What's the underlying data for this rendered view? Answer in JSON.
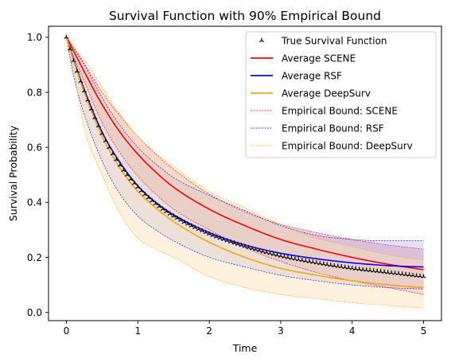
{
  "chart_data": {
    "type": "line",
    "title": "Survival Function with 90% Empirical Bound",
    "xlabel": "Time",
    "ylabel": "Survival Probability",
    "xlim": [
      -0.25,
      5.25
    ],
    "ylim": [
      -0.03,
      1.04
    ],
    "x_ticks": [
      0,
      1,
      2,
      3,
      4,
      5
    ],
    "x_tick_labels": [
      "0",
      "1",
      "2",
      "3",
      "4",
      "5"
    ],
    "y_ticks": [
      0.0,
      0.2,
      0.4,
      0.6,
      0.8,
      1.0
    ],
    "y_tick_labels": [
      "0.0",
      "0.2",
      "0.4",
      "0.6",
      "0.8",
      "1.0"
    ],
    "grid": false,
    "legend_position": "top-right",
    "x": [
      0,
      0.1,
      0.25,
      0.5,
      0.75,
      1,
      1.25,
      1.5,
      2,
      2.5,
      3,
      3.5,
      4,
      4.5,
      5
    ],
    "series": [
      {
        "name": "True Survival Function",
        "style": "markers",
        "color": "#000000",
        "values": [
          1.0,
          0.915,
          0.805,
          0.65,
          0.535,
          0.455,
          0.395,
          0.35,
          0.285,
          0.24,
          0.205,
          0.18,
          0.16,
          0.145,
          0.13
        ]
      },
      {
        "name": "Average SCENE",
        "style": "line",
        "color": "#ff0000",
        "values": [
          1.0,
          0.95,
          0.875,
          0.755,
          0.655,
          0.575,
          0.51,
          0.455,
          0.375,
          0.315,
          0.265,
          0.23,
          0.2,
          0.175,
          0.155
        ]
      },
      {
        "name": "Average RSF",
        "style": "line",
        "color": "#0000ff",
        "values": [
          1.0,
          0.92,
          0.81,
          0.655,
          0.545,
          0.46,
          0.4,
          0.355,
          0.29,
          0.245,
          0.215,
          0.195,
          0.18,
          0.17,
          0.165
        ]
      },
      {
        "name": "Average DeepSurv",
        "style": "line",
        "color": "#ffa500",
        "values": [
          1.0,
          0.915,
          0.8,
          0.64,
          0.525,
          0.44,
          0.38,
          0.33,
          0.255,
          0.2,
          0.16,
          0.135,
          0.115,
          0.1,
          0.09
        ]
      }
    ],
    "bounds": [
      {
        "name": "Empirical Bound: SCENE",
        "color": "#ff0000",
        "fill": "#e89aa6",
        "fill_opacity": 0.45,
        "lower": [
          1.0,
          0.93,
          0.84,
          0.69,
          0.58,
          0.495,
          0.43,
          0.375,
          0.3,
          0.235,
          0.185,
          0.145,
          0.115,
          0.09,
          0.065
        ],
        "upper": [
          1.0,
          0.965,
          0.905,
          0.8,
          0.715,
          0.64,
          0.575,
          0.52,
          0.43,
          0.365,
          0.32,
          0.29,
          0.265,
          0.245,
          0.23
        ]
      },
      {
        "name": "Empirical Bound: RSF",
        "color": "#0000ff",
        "fill": "#9b9be6",
        "fill_opacity": 0.3,
        "lower": [
          1.0,
          0.86,
          0.72,
          0.55,
          0.43,
          0.35,
          0.3,
          0.26,
          0.2,
          0.165,
          0.135,
          0.115,
          0.1,
          0.09,
          0.085
        ],
        "upper": [
          1.0,
          0.96,
          0.9,
          0.78,
          0.68,
          0.6,
          0.54,
          0.49,
          0.425,
          0.37,
          0.315,
          0.28,
          0.265,
          0.26,
          0.26
        ]
      },
      {
        "name": "Empirical Bound: DeepSurv",
        "color": "#ffa500",
        "fill": "#fde0b4",
        "fill_opacity": 0.45,
        "lower": [
          1.0,
          0.88,
          0.67,
          0.5,
          0.36,
          0.27,
          0.23,
          0.2,
          0.13,
          0.09,
          0.065,
          0.05,
          0.035,
          0.025,
          0.015
        ],
        "upper": [
          1.0,
          0.96,
          0.92,
          0.82,
          0.72,
          0.64,
          0.58,
          0.53,
          0.44,
          0.38,
          0.32,
          0.27,
          0.24,
          0.21,
          0.19
        ]
      }
    ]
  }
}
